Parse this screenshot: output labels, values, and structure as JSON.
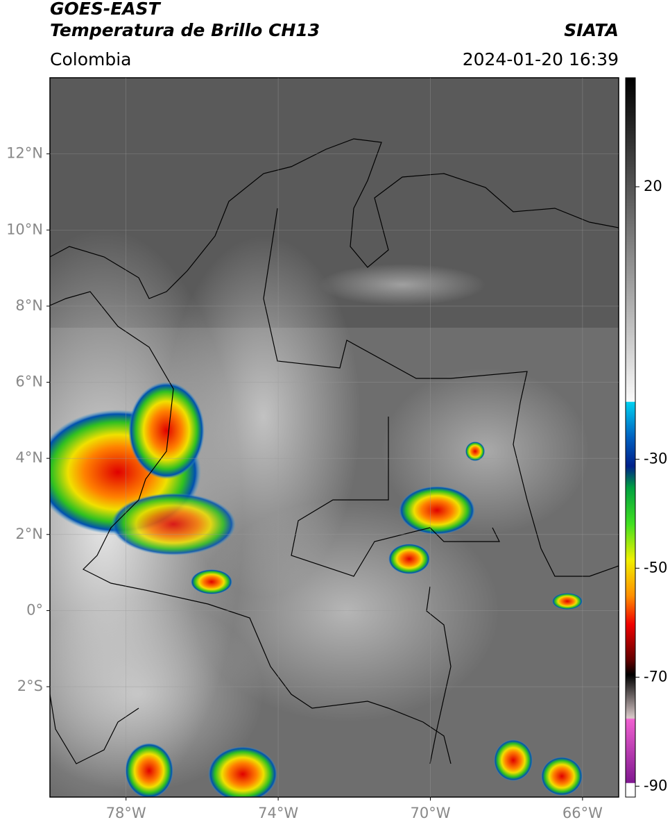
{
  "header": {
    "title": "GOES-EAST",
    "subtitle": "Temperatura de Brillo CH13",
    "source": "SIATA",
    "region": "Colombia",
    "timestamp": "2024-01-20 16:39"
  },
  "map": {
    "lonlim": [
      -80,
      -65.05
    ],
    "latlim": [
      -4.9,
      14
    ],
    "lonticks": [
      {
        "value": -78,
        "label": "78°W"
      },
      {
        "value": -74,
        "label": "74°W"
      },
      {
        "value": -70,
        "label": "70°W"
      },
      {
        "value": -66,
        "label": "66°W"
      }
    ],
    "latticks": [
      {
        "value": 12,
        "label": "12°N"
      },
      {
        "value": 10,
        "label": "10°N"
      },
      {
        "value": 8,
        "label": "8°N"
      },
      {
        "value": 6,
        "label": "6°N"
      },
      {
        "value": 4,
        "label": "4°N"
      },
      {
        "value": 2,
        "label": "2°N"
      },
      {
        "value": 0,
        "label": "0°"
      },
      {
        "value": -2,
        "label": "2°S"
      }
    ],
    "grid": true
  },
  "colorbar": {
    "range": [
      -92,
      40
    ],
    "ticks": [
      20,
      -30,
      -50,
      -70,
      -90
    ]
  }
}
